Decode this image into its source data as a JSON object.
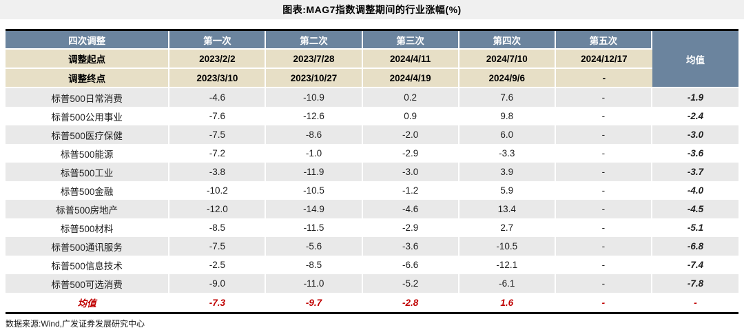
{
  "title": "图表:MAG7指数调整期间的行业涨幅(%)",
  "source_note": "数据来源:Wind,广发证券发展研究中心",
  "colors": {
    "header_bg": "#6b849e",
    "date_row_bg": "#e7dfc6",
    "row_alt_bg": "#e9e9e9",
    "accent_red": "#c00000",
    "title_band_bg": "#f0f0f0"
  },
  "table": {
    "header": {
      "corner_label": "四次调整",
      "columns": [
        "第一次",
        "第二次",
        "第三次",
        "第四次",
        "第五次"
      ],
      "avg_label": "均值",
      "start_row": {
        "label": "调整起点",
        "values": [
          "2023/2/2",
          "2023/7/28",
          "2024/4/11",
          "2024/7/10",
          "2024/12/17"
        ]
      },
      "end_row": {
        "label": "调整终点",
        "values": [
          "2023/3/10",
          "2023/10/27",
          "2024/4/19",
          "2024/9/6",
          "-"
        ]
      }
    },
    "rows": [
      {
        "label": "标普500日常消费",
        "values": [
          "-4.6",
          "-10.9",
          "0.2",
          "7.6",
          "-"
        ],
        "avg": "-1.9"
      },
      {
        "label": "标普500公用事业",
        "values": [
          "-7.6",
          "-12.6",
          "0.9",
          "9.8",
          "-"
        ],
        "avg": "-2.4"
      },
      {
        "label": "标普500医疗保健",
        "values": [
          "-7.5",
          "-8.6",
          "-2.0",
          "6.0",
          "-"
        ],
        "avg": "-3.0"
      },
      {
        "label": "标普500能源",
        "values": [
          "-7.2",
          "-1.0",
          "-2.9",
          "-3.3",
          "-"
        ],
        "avg": "-3.6"
      },
      {
        "label": "标普500工业",
        "values": [
          "-3.8",
          "-11.9",
          "-3.0",
          "3.9",
          "-"
        ],
        "avg": "-3.7"
      },
      {
        "label": "标普500金融",
        "values": [
          "-10.2",
          "-10.5",
          "-1.2",
          "5.9",
          "-"
        ],
        "avg": "-4.0"
      },
      {
        "label": "标普500房地产",
        "values": [
          "-12.0",
          "-14.9",
          "-4.6",
          "13.4",
          "-"
        ],
        "avg": "-4.5"
      },
      {
        "label": "标普500材料",
        "values": [
          "-8.5",
          "-11.5",
          "-2.9",
          "2.7",
          "-"
        ],
        "avg": "-5.1"
      },
      {
        "label": "标普500通讯服务",
        "values": [
          "-7.5",
          "-5.6",
          "-3.6",
          "-10.5",
          "-"
        ],
        "avg": "-6.8"
      },
      {
        "label": "标普500信息技术",
        "values": [
          "-2.5",
          "-8.5",
          "-6.6",
          "-12.1",
          "-"
        ],
        "avg": "-7.4"
      },
      {
        "label": "标普500可选消费",
        "values": [
          "-9.0",
          "-11.0",
          "-5.2",
          "-6.1",
          "-"
        ],
        "avg": "-7.8"
      }
    ],
    "average_row": {
      "label": "均值",
      "values": [
        "-7.3",
        "-9.7",
        "-2.8",
        "1.6",
        "-"
      ],
      "avg": "-"
    }
  },
  "chart_data": {
    "type": "table",
    "title": "图表:MAG7指数调整期间的行业涨幅(%)",
    "columns": [
      "四次调整",
      "第一次",
      "第二次",
      "第三次",
      "第四次",
      "第五次",
      "均值"
    ],
    "adjustment_periods": {
      "start": [
        "2023/2/2",
        "2023/7/28",
        "2024/4/11",
        "2024/7/10",
        "2024/12/17"
      ],
      "end": [
        "2023/3/10",
        "2023/10/27",
        "2024/4/19",
        "2024/9/6",
        null
      ]
    },
    "series": [
      {
        "name": "标普500日常消费",
        "values": [
          -4.6,
          -10.9,
          0.2,
          7.6,
          null
        ],
        "avg": -1.9
      },
      {
        "name": "标普500公用事业",
        "values": [
          -7.6,
          -12.6,
          0.9,
          9.8,
          null
        ],
        "avg": -2.4
      },
      {
        "name": "标普500医疗保健",
        "values": [
          -7.5,
          -8.6,
          -2.0,
          6.0,
          null
        ],
        "avg": -3.0
      },
      {
        "name": "标普500能源",
        "values": [
          -7.2,
          -1.0,
          -2.9,
          -3.3,
          null
        ],
        "avg": -3.6
      },
      {
        "name": "标普500工业",
        "values": [
          -3.8,
          -11.9,
          -3.0,
          3.9,
          null
        ],
        "avg": -3.7
      },
      {
        "name": "标普500金融",
        "values": [
          -10.2,
          -10.5,
          -1.2,
          5.9,
          null
        ],
        "avg": -4.0
      },
      {
        "name": "标普500房地产",
        "values": [
          -12.0,
          -14.9,
          -4.6,
          13.4,
          null
        ],
        "avg": -4.5
      },
      {
        "name": "标普500材料",
        "values": [
          -8.5,
          -11.5,
          -2.9,
          2.7,
          null
        ],
        "avg": -5.1
      },
      {
        "name": "标普500通讯服务",
        "values": [
          -7.5,
          -5.6,
          -3.6,
          -10.5,
          null
        ],
        "avg": -6.8
      },
      {
        "name": "标普500信息技术",
        "values": [
          -2.5,
          -8.5,
          -6.6,
          -12.1,
          null
        ],
        "avg": -7.4
      },
      {
        "name": "标普500可选消费",
        "values": [
          -9.0,
          -11.0,
          -5.2,
          -6.1,
          null
        ],
        "avg": -7.8
      }
    ],
    "column_averages": [
      -7.3,
      -9.7,
      -2.8,
      1.6,
      null
    ]
  }
}
